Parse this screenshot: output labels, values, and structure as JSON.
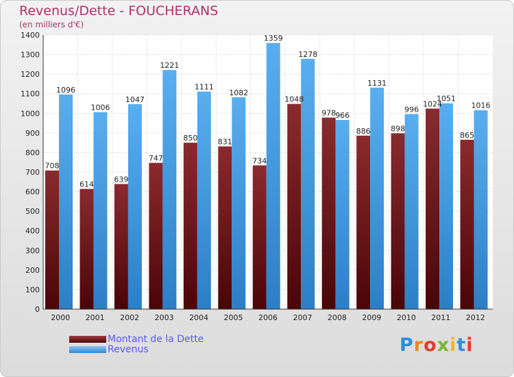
{
  "chart_title": "Revenus/Dette - FOUCHERANS",
  "chart_subtitle": "(en milliers d'€)",
  "logo_text": "Proxiti",
  "colors": {
    "dette": "#6e1316",
    "revenus": "#3a95dd",
    "title": "#b0306a",
    "legend_text": "#5a5aff"
  },
  "chart_data": {
    "type": "bar",
    "title": "Revenus/Dette - FOUCHERANS",
    "subtitle": "(en milliers d'€)",
    "xlabel": "",
    "ylabel": "",
    "ylim": [
      0,
      1400
    ],
    "yticks": [
      0,
      100,
      200,
      300,
      400,
      500,
      600,
      700,
      800,
      900,
      1000,
      1100,
      1200,
      1300,
      1400
    ],
    "grid": true,
    "legend_position": "bottom-left",
    "categories": [
      "2000",
      "2001",
      "2002",
      "2003",
      "2004",
      "2005",
      "2006",
      "2007",
      "2008",
      "2009",
      "2010",
      "2011",
      "2012"
    ],
    "series": [
      {
        "name": "Montant de la Dette",
        "values": [
          708,
          614,
          639,
          747,
          850,
          831,
          734,
          1048,
          978,
          886,
          898,
          1024,
          865
        ]
      },
      {
        "name": "Revenus",
        "values": [
          1096,
          1006,
          1047,
          1221,
          1111,
          1082,
          1359,
          1278,
          966,
          1131,
          996,
          1051,
          1016
        ]
      }
    ]
  }
}
